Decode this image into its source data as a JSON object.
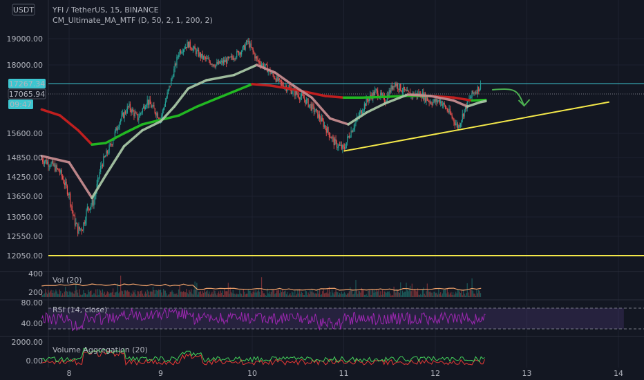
{
  "header": {
    "quote_currency": "USDT",
    "symbol_line": "YFI / TetherUS, 15, BINANCE",
    "indicator_line": "CM_Ultimate_MA_MTF (D, 50, 2, 1, 200, 2)"
  },
  "price_badges": {
    "last": "17267.34",
    "prev": "17065.94",
    "countdown": "09:47"
  },
  "panes": {
    "vol": {
      "label": "Vol (20)",
      "ticks": [
        "400",
        "200"
      ]
    },
    "rsi": {
      "label": "RSI (14, close)",
      "ticks": [
        "80.00",
        "40.00"
      ]
    },
    "va": {
      "label": "Volume Aggregation (20)",
      "ticks": [
        "2000.00",
        "0.00"
      ]
    }
  },
  "colors": {
    "background": "#131722",
    "grid": "#1e2230",
    "candle_up": "#26a69a",
    "candle_down": "#ef5350",
    "ma_fast": "#a5c4a3",
    "ma_slow_up": "#22b822",
    "ma_slow_down": "#c01f1f",
    "trendline": "#f5e94a",
    "price_line": "#3dc6d0",
    "rsi": "#9c27b0",
    "annotation": "#4caf50"
  },
  "chart_data": {
    "type": "candlestick",
    "title": "YFI / TetherUS, 15, BINANCE",
    "x_ticks": [
      "8",
      "9",
      "10",
      "11",
      "12",
      "13",
      "14"
    ],
    "y_ticks": [
      "19000.00",
      "18000.00",
      "17267.34",
      "17065.94",
      "15600.00",
      "14850.00",
      "14250.00",
      "13650.00",
      "13050.00",
      "12550.00",
      "12050.00"
    ],
    "ylim": [
      11750,
      20000
    ],
    "close_path": [
      [
        7.7,
        14800
      ],
      [
        7.8,
        14650
      ],
      [
        7.9,
        14400
      ],
      [
        8.0,
        13700
      ],
      [
        8.05,
        13000
      ],
      [
        8.1,
        12700
      ],
      [
        8.15,
        12800
      ],
      [
        8.2,
        13300
      ],
      [
        8.27,
        13500
      ],
      [
        8.35,
        14600
      ],
      [
        8.45,
        15200
      ],
      [
        8.55,
        16000
      ],
      [
        8.65,
        16500
      ],
      [
        8.75,
        16100
      ],
      [
        8.85,
        16700
      ],
      [
        9.0,
        16100
      ],
      [
        9.1,
        17200
      ],
      [
        9.2,
        18500
      ],
      [
        9.3,
        18800
      ],
      [
        9.45,
        18300
      ],
      [
        9.6,
        18000
      ],
      [
        9.75,
        18200
      ],
      [
        9.9,
        18600
      ],
      [
        9.95,
        18900
      ],
      [
        10.05,
        18200
      ],
      [
        10.15,
        17900
      ],
      [
        10.3,
        17300
      ],
      [
        10.45,
        17000
      ],
      [
        10.55,
        16800
      ],
      [
        10.7,
        16300
      ],
      [
        10.8,
        15800
      ],
      [
        10.9,
        15300
      ],
      [
        11.0,
        15100
      ],
      [
        11.05,
        15500
      ],
      [
        11.15,
        16100
      ],
      [
        11.25,
        16700
      ],
      [
        11.35,
        17000
      ],
      [
        11.45,
        16700
      ],
      [
        11.55,
        17300
      ],
      [
        11.7,
        16900
      ],
      [
        11.85,
        16900
      ],
      [
        11.95,
        16650
      ],
      [
        12.05,
        16700
      ],
      [
        12.15,
        16300
      ],
      [
        12.25,
        15800
      ],
      [
        12.32,
        16400
      ],
      [
        12.4,
        16900
      ],
      [
        12.5,
        17200
      ]
    ],
    "series": [
      {
        "name": "CM_Ultimate_MA_MTF fast MA",
        "points": [
          [
            7.7,
            14900
          ],
          [
            8.0,
            14700
          ],
          [
            8.25,
            13600
          ],
          [
            8.4,
            14300
          ],
          [
            8.6,
            15200
          ],
          [
            8.8,
            15700
          ],
          [
            9.0,
            16000
          ],
          [
            9.15,
            16500
          ],
          [
            9.3,
            17100
          ],
          [
            9.5,
            17400
          ],
          [
            9.8,
            17600
          ],
          [
            10.05,
            18000
          ],
          [
            10.25,
            17700
          ],
          [
            10.45,
            17200
          ],
          [
            10.65,
            16800
          ],
          [
            10.85,
            16100
          ],
          [
            11.05,
            15900
          ],
          [
            11.25,
            16300
          ],
          [
            11.45,
            16600
          ],
          [
            11.7,
            16900
          ],
          [
            11.95,
            16850
          ],
          [
            12.2,
            16700
          ],
          [
            12.35,
            16500
          ],
          [
            12.5,
            16650
          ],
          [
            12.55,
            16680
          ]
        ]
      },
      {
        "name": "CM_Ultimate_MA_MTF slow MA",
        "points": [
          [
            7.7,
            16400
          ],
          [
            7.9,
            16200
          ],
          [
            8.1,
            15700
          ],
          [
            8.25,
            15250
          ],
          [
            8.4,
            15300
          ],
          [
            8.6,
            15600
          ],
          [
            8.8,
            15900
          ],
          [
            9.0,
            16050
          ],
          [
            9.2,
            16200
          ],
          [
            9.4,
            16500
          ],
          [
            9.6,
            16750
          ],
          [
            9.8,
            17000
          ],
          [
            10.0,
            17250
          ],
          [
            10.2,
            17200
          ],
          [
            10.4,
            17100
          ],
          [
            10.6,
            16980
          ],
          [
            10.8,
            16850
          ],
          [
            11.0,
            16800
          ],
          [
            11.2,
            16800
          ],
          [
            11.45,
            16820
          ],
          [
            11.7,
            16860
          ],
          [
            11.95,
            16850
          ],
          [
            12.2,
            16800
          ],
          [
            12.4,
            16700
          ],
          [
            12.55,
            16720
          ]
        ]
      }
    ],
    "annotations": {
      "trendline_rising": [
        [
          11.0,
          15050
        ],
        [
          13.9,
          16650
        ]
      ],
      "horizontal_support": 12050,
      "last_price_line": 17267.34,
      "arrow": [
        [
          12.62,
          17000
        ],
        [
          12.97,
          16700
        ]
      ]
    },
    "volume": {
      "ylim": [
        0,
        400
      ]
    },
    "rsi": {
      "ylim": [
        0,
        100
      ],
      "band": [
        30,
        70
      ]
    },
    "volume_aggregation": {
      "ylim": [
        0,
        2500
      ]
    }
  }
}
